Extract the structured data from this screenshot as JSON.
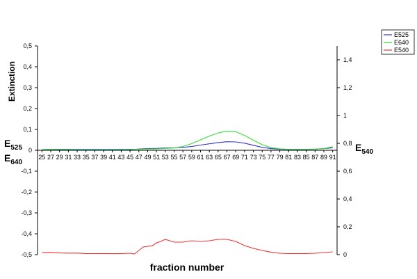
{
  "chart_data": {
    "type": "line",
    "xlabel": "fraction number",
    "ylabel_left": "Extinction",
    "left_axis_symbols": [
      {
        "base": "E",
        "sub": "525"
      },
      {
        "base": "E",
        "sub": "640"
      }
    ],
    "right_axis_symbol": {
      "base": "E",
      "sub": "540"
    },
    "legend_position": "top-right",
    "grid": false,
    "x_ticks": [
      25,
      27,
      29,
      31,
      33,
      35,
      37,
      39,
      41,
      43,
      45,
      47,
      49,
      51,
      53,
      55,
      57,
      59,
      61,
      63,
      65,
      67,
      69,
      71,
      73,
      75,
      77,
      79,
      81,
      83,
      85,
      87,
      89,
      91
    ],
    "left_axis": {
      "range": [
        -0.5,
        0.5
      ],
      "ticks": [
        0.5,
        0.4,
        0.3,
        0.2,
        0.1,
        0,
        -0.1,
        -0.2,
        -0.3,
        -0.4,
        -0.5
      ],
      "tick_labels": [
        "0,5",
        "0,4",
        "0,3",
        "0,2",
        "0,1",
        "0",
        "-0,1",
        "-0,2",
        "-0,3",
        "-0,4",
        "-0,5"
      ]
    },
    "right_axis": {
      "range": [
        0,
        1.5
      ],
      "ticks": [
        1.4,
        1.2,
        1,
        0.8,
        0.6,
        0.4,
        0.2,
        0
      ],
      "tick_labels": [
        "1,4",
        "1,2",
        "1",
        "0,8",
        "0,6",
        "0,4",
        "0,2",
        "0"
      ]
    },
    "series": [
      {
        "name": "E525",
        "color": "#3333cc",
        "axis": "left",
        "x": [
          25,
          29,
          33,
          37,
          41,
          45,
          47,
          49,
          51,
          53,
          55,
          57,
          59,
          61,
          63,
          65,
          67,
          69,
          71,
          73,
          75,
          77,
          79,
          81,
          83,
          85,
          87,
          89,
          91
        ],
        "values": [
          0.003,
          0.004,
          0.002,
          0.002,
          0.002,
          0.003,
          0.006,
          0.008,
          0.009,
          0.011,
          0.012,
          0.014,
          0.018,
          0.025,
          0.031,
          0.037,
          0.041,
          0.04,
          0.034,
          0.024,
          0.014,
          0.008,
          0.005,
          0.004,
          0.004,
          0.004,
          0.005,
          0.008,
          0.012
        ]
      },
      {
        "name": "E640",
        "color": "#33dd33",
        "axis": "left",
        "x": [
          25,
          29,
          33,
          37,
          41,
          45,
          47,
          49,
          51,
          53,
          55,
          57,
          59,
          61,
          63,
          65,
          67,
          69,
          71,
          73,
          75,
          77,
          79,
          81,
          83,
          85,
          87,
          89,
          91
        ],
        "values": [
          0.004,
          0.005,
          0.005,
          0.005,
          0.005,
          0.005,
          0.005,
          0.006,
          0.007,
          0.009,
          0.011,
          0.018,
          0.032,
          0.05,
          0.068,
          0.083,
          0.092,
          0.089,
          0.071,
          0.048,
          0.027,
          0.013,
          0.007,
          0.005,
          0.005,
          0.005,
          0.006,
          0.008,
          0.017
        ]
      },
      {
        "name": "E540",
        "color": "#ee3333",
        "axis": "right",
        "x": [
          25,
          27,
          29,
          31,
          33,
          35,
          37,
          39,
          41,
          43,
          45,
          46,
          47,
          48,
          49,
          50,
          51,
          52,
          53,
          54,
          55,
          57,
          59,
          61,
          63,
          65,
          67,
          69,
          71,
          73,
          75,
          77,
          79,
          81,
          83,
          85,
          87,
          89,
          91
        ],
        "values": [
          0.015,
          0.016,
          0.012,
          0.011,
          0.011,
          0.008,
          0.008,
          0.008,
          0.007,
          0.008,
          0.01,
          0.005,
          0.03,
          0.055,
          0.06,
          0.062,
          0.085,
          0.095,
          0.11,
          0.1,
          0.09,
          0.09,
          0.1,
          0.095,
          0.1,
          0.11,
          0.11,
          0.095,
          0.065,
          0.045,
          0.03,
          0.018,
          0.01,
          0.008,
          0.008,
          0.008,
          0.01,
          0.015,
          0.02
        ]
      }
    ]
  }
}
